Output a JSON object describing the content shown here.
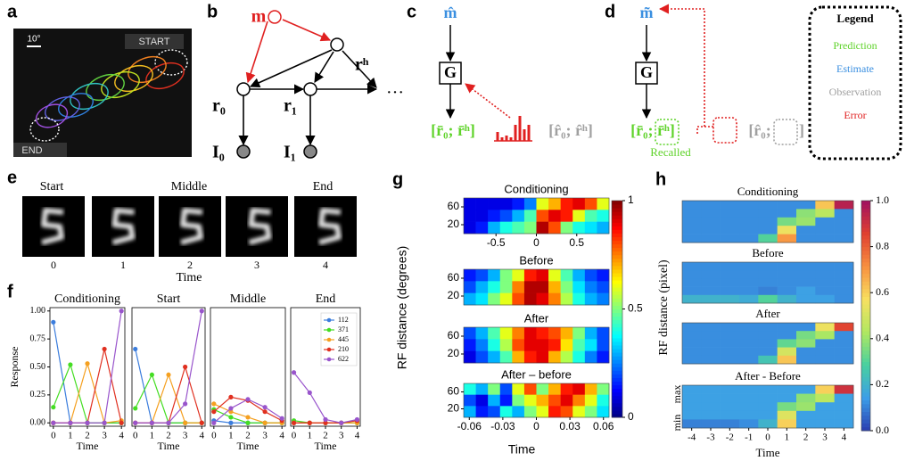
{
  "panel_labels": [
    "a",
    "b",
    "c",
    "d",
    "e",
    "f",
    "g",
    "h"
  ],
  "panel_a": {
    "scale": "10°",
    "start": "START",
    "end": "END"
  },
  "panel_b": {
    "nodes": [
      "m",
      "rʰ",
      "r₀",
      "r₁",
      "…",
      "I₀",
      "I₁"
    ]
  },
  "panel_c": {
    "input": "m̂",
    "generator": "G",
    "prediction": "[r̄₀; r̄ʰ]",
    "observation": "[r̂₀; r̂ʰ]"
  },
  "panel_d": {
    "input": "m̃",
    "generator": "G",
    "prediction": "[r̄₀; r̄ʰ]",
    "recalled": "Recalled",
    "observation_open": "[r̂₀;",
    "observation_close": "]"
  },
  "legend": {
    "title": "Legend",
    "items": [
      {
        "label": "Prediction",
        "color": "#5fd32a"
      },
      {
        "label": "Estimate",
        "color": "#3a8fe0"
      },
      {
        "label": "Observation",
        "color": "#a0a0a0"
      },
      {
        "label": "Error",
        "color": "#e02020"
      }
    ]
  },
  "panel_e": {
    "labels": [
      "Start",
      "Middle",
      "End"
    ],
    "frames": [
      0,
      1,
      2,
      3,
      4
    ],
    "xlabel": "Time"
  },
  "panel_g": {
    "ylabel": "RF distance (degrees)",
    "xlabel": "Time",
    "colorbar": {
      "lim": [
        0,
        1
      ],
      "ticks": [
        0,
        0.5,
        1
      ],
      "colors": [
        "#00007f",
        "#0000ff",
        "#007fff",
        "#00ffff",
        "#7fff7f",
        "#ffff00",
        "#ff7f00",
        "#ff0000",
        "#7f0000"
      ]
    }
  },
  "panel_h": {
    "ylabel": "RF distance (pixel)",
    "xlabel": "Time",
    "max": "max",
    "min": "min",
    "colorbar": {
      "lim": [
        0,
        1
      ],
      "ticks": [
        {
          "value": 0,
          "label": "0.0"
        },
        0.2,
        0.4,
        0.6,
        0.8,
        {
          "value": 1,
          "label": "1.0"
        }
      ],
      "colors": [
        "#2a3cb0",
        "#3c9ee8",
        "#48d0a0",
        "#b0e860",
        "#f8e060",
        "#f89040",
        "#e04030",
        "#a01060"
      ]
    }
  },
  "chart_data": [
    {
      "type": "line",
      "title": "Conditioning",
      "xlabel": "Time",
      "ylabel": "Response",
      "x": [
        0,
        1,
        2,
        3,
        4
      ],
      "xlim": [
        -0.2,
        4.2
      ],
      "xticks": [
        0,
        1,
        2,
        3,
        4
      ],
      "ylim": [
        -0.03,
        1.03
      ],
      "yticks": [
        {
          "value": 0,
          "label": "0.00"
        },
        {
          "value": 0.25,
          "label": "0.25"
        },
        {
          "value": 0.5,
          "label": "0.50"
        },
        {
          "value": 0.75,
          "label": "0.75"
        },
        {
          "value": 1,
          "label": "1.00"
        }
      ],
      "series": [
        {
          "color": "#3b7ddd",
          "values": [
            0.9,
            0,
            0,
            0,
            0
          ]
        },
        {
          "color": "#44dd22",
          "values": [
            0.14,
            0.52,
            0,
            0,
            0
          ]
        },
        {
          "color": "#f5a020",
          "values": [
            0,
            0,
            0.53,
            0,
            0.02
          ]
        },
        {
          "color": "#e03020",
          "values": [
            0,
            0,
            0,
            0.66,
            0
          ]
        },
        {
          "color": "#9955cc",
          "values": [
            0,
            0,
            0,
            0,
            1.0
          ]
        }
      ]
    },
    {
      "type": "line",
      "title": "Start",
      "xlabel": "Time",
      "x": [
        0,
        1,
        2,
        3,
        4
      ],
      "xlim": [
        -0.2,
        4.2
      ],
      "xticks": [
        0,
        1,
        2,
        3,
        4
      ],
      "ylim": [
        -0.03,
        1.03
      ],
      "series": [
        {
          "color": "#3b7ddd",
          "values": [
            0.66,
            0,
            0,
            0,
            0
          ]
        },
        {
          "color": "#44dd22",
          "values": [
            0.13,
            0.43,
            0,
            0,
            0
          ]
        },
        {
          "color": "#f5a020",
          "values": [
            0,
            0,
            0.43,
            0,
            0
          ]
        },
        {
          "color": "#e03020",
          "values": [
            0,
            0,
            0,
            0.5,
            0
          ]
        },
        {
          "color": "#9955cc",
          "values": [
            0,
            0,
            0,
            0.17,
            1.0
          ]
        }
      ]
    },
    {
      "type": "line",
      "title": "Middle",
      "xlabel": "Time",
      "x": [
        0,
        1,
        2,
        3,
        4
      ],
      "xlim": [
        -0.2,
        4.2
      ],
      "xticks": [
        0,
        1,
        2,
        3,
        4
      ],
      "ylim": [
        -0.03,
        1.03
      ],
      "series": [
        {
          "color": "#3b7ddd",
          "values": [
            0.02,
            0,
            0,
            0,
            0
          ]
        },
        {
          "color": "#44dd22",
          "values": [
            0.12,
            0.05,
            0,
            0,
            0
          ]
        },
        {
          "color": "#f5a020",
          "values": [
            0.17,
            0.1,
            0.05,
            0,
            0
          ]
        },
        {
          "color": "#e03020",
          "values": [
            0.1,
            0.23,
            0.2,
            0.1,
            0.02
          ]
        },
        {
          "color": "#9955cc",
          "values": [
            0,
            0.13,
            0.21,
            0.14,
            0.04
          ]
        }
      ]
    },
    {
      "type": "line",
      "title": "End",
      "xlabel": "Time",
      "x": [
        0,
        1,
        2,
        3,
        4
      ],
      "legend": "upper right",
      "xlim": [
        -0.2,
        4.2
      ],
      "xticks": [
        0,
        1,
        2,
        3,
        4
      ],
      "ylim": [
        -0.03,
        1.03
      ],
      "series": [
        {
          "name": "112",
          "color": "#3b7ddd",
          "values": [
            0,
            0,
            0,
            0,
            0
          ]
        },
        {
          "name": "371",
          "color": "#44dd22",
          "values": [
            0.02,
            0,
            0,
            0,
            0
          ]
        },
        {
          "name": "445",
          "color": "#f5a020",
          "values": [
            0,
            0,
            0,
            0,
            0
          ]
        },
        {
          "name": "210",
          "color": "#e03020",
          "values": [
            0,
            0,
            0,
            0,
            0.02
          ]
        },
        {
          "name": "622",
          "color": "#9955cc",
          "values": [
            0.45,
            0.27,
            0.03,
            0,
            0.03
          ]
        }
      ]
    },
    {
      "type": "heatmap",
      "title": "Conditioning",
      "ylim": [
        0,
        80
      ],
      "yticks": [
        20,
        60
      ],
      "xlim": [
        -0.9,
        0.9
      ],
      "xticks": [
        -0.5,
        0,
        0.5
      ],
      "values": [
        [
          0.1,
          0.1,
          0.1,
          0.1,
          0.15,
          0.25,
          0.6,
          0.7,
          0.85,
          0.9,
          0.8,
          0.6
        ],
        [
          0.1,
          0.1,
          0.15,
          0.2,
          0.3,
          0.45,
          0.8,
          0.9,
          0.85,
          0.6,
          0.45,
          0.4
        ],
        [
          0.1,
          0.15,
          0.3,
          0.4,
          0.45,
          0.5,
          0.95,
          0.8,
          0.5,
          0.4,
          0.35,
          0.3
        ]
      ]
    },
    {
      "type": "heatmap",
      "title": "Before",
      "ylim": [
        0,
        80
      ],
      "yticks": [
        20,
        60
      ],
      "values": [
        [
          0.15,
          0.2,
          0.3,
          0.5,
          0.6,
          0.85,
          0.9,
          0.6,
          0.45,
          0.3,
          0.2,
          0.15
        ],
        [
          0.2,
          0.3,
          0.4,
          0.5,
          0.75,
          0.95,
          0.95,
          0.7,
          0.5,
          0.35,
          0.25,
          0.2
        ],
        [
          0.3,
          0.35,
          0.5,
          0.6,
          0.8,
          0.95,
          0.9,
          0.75,
          0.55,
          0.4,
          0.3,
          0.25
        ]
      ]
    },
    {
      "type": "heatmap",
      "title": "After",
      "ylim": [
        0,
        80
      ],
      "yticks": [
        20,
        60
      ],
      "values": [
        [
          0.2,
          0.3,
          0.45,
          0.6,
          0.75,
          0.9,
          0.85,
          0.8,
          0.7,
          0.5,
          0.3,
          0.2
        ],
        [
          0.15,
          0.25,
          0.4,
          0.55,
          0.8,
          0.9,
          0.9,
          0.85,
          0.65,
          0.45,
          0.35,
          0.2
        ],
        [
          0.1,
          0.2,
          0.3,
          0.45,
          0.7,
          0.85,
          0.9,
          0.7,
          0.55,
          0.4,
          0.25,
          0.15
        ]
      ]
    },
    {
      "type": "heatmap",
      "title": "After – before",
      "ylim": [
        0,
        80
      ],
      "yticks": [
        20,
        60
      ],
      "xlim": [
        -0.065,
        0.065
      ],
      "xticks": [
        -0.06,
        -0.03,
        0,
        0.03,
        0.06
      ],
      "values": [
        [
          0.4,
          0.3,
          0.5,
          0.2,
          0.6,
          0.8,
          0.5,
          0.7,
          0.85,
          0.9,
          0.7,
          0.5
        ],
        [
          0.2,
          0.1,
          0.3,
          0.15,
          0.5,
          0.6,
          0.7,
          0.8,
          0.9,
          0.75,
          0.6,
          0.4
        ],
        [
          0.3,
          0.15,
          0.2,
          0.4,
          0.3,
          0.5,
          0.6,
          0.85,
          0.8,
          0.6,
          0.5,
          0.35
        ]
      ]
    },
    {
      "type": "heatmap",
      "title": "Conditioning",
      "values": [
        [
          0.12,
          0.12,
          0.12,
          0.12,
          0.12,
          0.12,
          0.12,
          0.62,
          0.95
        ],
        [
          0.12,
          0.12,
          0.12,
          0.12,
          0.12,
          0.12,
          0.38,
          0.45,
          0.12
        ],
        [
          0.12,
          0.12,
          0.12,
          0.12,
          0.12,
          0.35,
          0.4,
          0.12,
          0.12
        ],
        [
          0.12,
          0.12,
          0.12,
          0.12,
          0.12,
          0.55,
          0.12,
          0.12,
          0.12
        ],
        [
          0.12,
          0.12,
          0.12,
          0.12,
          0.3,
          0.7,
          0.12,
          0.12,
          0.12
        ]
      ]
    },
    {
      "type": "heatmap",
      "title": "Before",
      "values": [
        [
          0.12,
          0.12,
          0.12,
          0.12,
          0.12,
          0.12,
          0.12,
          0.12,
          0.12
        ],
        [
          0.12,
          0.12,
          0.12,
          0.12,
          0.12,
          0.12,
          0.12,
          0.12,
          0.12
        ],
        [
          0.12,
          0.12,
          0.12,
          0.12,
          0.12,
          0.12,
          0.12,
          0.12,
          0.12
        ],
        [
          0.12,
          0.12,
          0.12,
          0.12,
          0.1,
          0.12,
          0.15,
          0.12,
          0.12
        ],
        [
          0.2,
          0.2,
          0.2,
          0.18,
          0.3,
          0.2,
          0.15,
          0.15,
          0.12
        ]
      ]
    },
    {
      "type": "heatmap",
      "title": "After",
      "values": [
        [
          0.12,
          0.12,
          0.12,
          0.12,
          0.12,
          0.12,
          0.12,
          0.55,
          0.85
        ],
        [
          0.12,
          0.12,
          0.12,
          0.12,
          0.12,
          0.12,
          0.35,
          0.42,
          0.12
        ],
        [
          0.12,
          0.12,
          0.12,
          0.12,
          0.12,
          0.32,
          0.38,
          0.12,
          0.12
        ],
        [
          0.12,
          0.12,
          0.12,
          0.12,
          0.12,
          0.5,
          0.12,
          0.12,
          0.12
        ],
        [
          0.12,
          0.12,
          0.12,
          0.12,
          0.25,
          0.62,
          0.12,
          0.12,
          0.12
        ]
      ]
    },
    {
      "type": "heatmap",
      "title": "After - Before",
      "xlim": [
        -4.5,
        4.5
      ],
      "xticks": [
        -4,
        -3,
        -2,
        -1,
        0,
        1,
        2,
        3,
        4
      ],
      "values": [
        [
          0.15,
          0.15,
          0.15,
          0.15,
          0.15,
          0.15,
          0.15,
          0.6,
          0.9
        ],
        [
          0.15,
          0.15,
          0.15,
          0.15,
          0.15,
          0.15,
          0.38,
          0.45,
          0.15
        ],
        [
          0.15,
          0.15,
          0.15,
          0.15,
          0.15,
          0.35,
          0.4,
          0.15,
          0.15
        ],
        [
          0.15,
          0.15,
          0.15,
          0.15,
          0.15,
          0.52,
          0.15,
          0.15,
          0.15
        ],
        [
          0.1,
          0.1,
          0.1,
          0.12,
          0.2,
          0.6,
          0.15,
          0.15,
          0.15
        ]
      ]
    }
  ]
}
